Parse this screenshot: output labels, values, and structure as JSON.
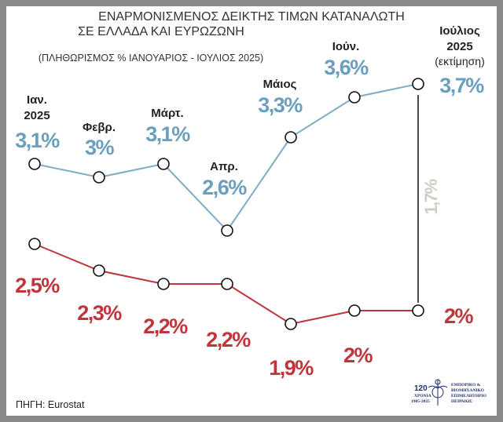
{
  "chart_data": {
    "type": "line",
    "title_line1": "ΕΝΑΡΜΟΝΙΣΜΕΝΟΣ ΔΕΙΚΤΗΣ ΤΙΜΩΝ ΚΑΤΑΝΑΛΩΤΗ",
    "title_line2": "ΣΕ ΕΛΛΑΔΑ ΚΑΙ ΕΥΡΩΖΩΝΗ",
    "subtitle": "(ΠΛΗΘΩΡΙΣΜΟΣ % ΙΑΝΟΥΑΡΙΟΣ - ΙΟΥΛΙΟΣ 2025)",
    "categories": [
      {
        "line1": "Ιαν.",
        "line2": "2025"
      },
      {
        "line1": "Φεβρ."
      },
      {
        "line1": "Μάρτ."
      },
      {
        "line1": "Απρ."
      },
      {
        "line1": "Μάιος"
      },
      {
        "line1": "Ιούν."
      },
      {
        "line1": "Ιούλιος",
        "line2": "2025",
        "line3": "(εκτίμηση)"
      }
    ],
    "series": [
      {
        "name": "Ελλάδα",
        "color": "#7fadc6",
        "label_color": "#6a9fbd",
        "values": [
          3.1,
          3.0,
          3.1,
          2.6,
          3.3,
          3.6,
          3.7
        ],
        "labels": [
          "3,1%",
          "3%",
          "3,1%",
          "2,6%",
          "3,3%",
          "3,6%",
          "3,7%"
        ]
      },
      {
        "name": "Ευρωζώνη",
        "color": "#c0343b",
        "label_color": "#c0343b",
        "values": [
          2.5,
          2.3,
          2.2,
          2.2,
          1.9,
          2.0,
          2.0
        ],
        "labels": [
          "2,5%",
          "2,3%",
          "2,2%",
          "2,2%",
          "1,9%",
          "2%",
          "2%"
        ]
      }
    ],
    "gap_annotation": {
      "label": "1,7%",
      "color": "#cfccc4"
    },
    "source": "ΠΗΓΗ: Eurostat"
  },
  "logo": {
    "number": "120",
    "years_label": "ΧΡΟΝΙΑ",
    "years": "1905-2025",
    "org": [
      "ΕΜΠΟΡΙΚΟ &",
      "ΒΙΟΜΗΧΑΝΙΚΟ",
      "ΕΠΙΜΕΛΗΤΗΡΙΟ",
      "ΠΕΙΡΑΙΩΣ"
    ]
  }
}
